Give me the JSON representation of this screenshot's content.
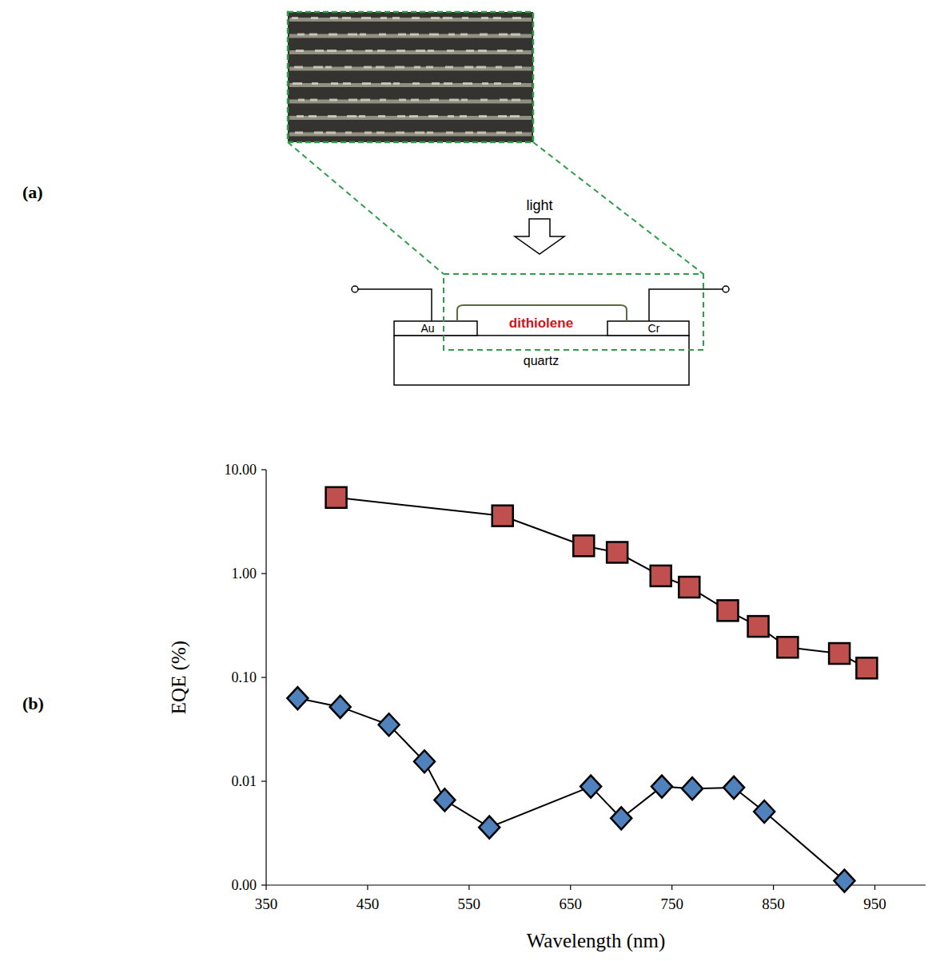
{
  "panels": {
    "a": "(a)",
    "b": "(b)"
  },
  "diagram": {
    "arrow_label": "light",
    "film": "dithiolene",
    "left_electrode": "Au",
    "right_electrode": "Cr",
    "substrate": "quartz"
  },
  "chart_data": {
    "type": "line",
    "log": "y",
    "grid": false,
    "x_label": "Wavelength (nm)",
    "y_label": "EQE (%)",
    "xlim": [
      350,
      1000
    ],
    "xticks": [
      350,
      450,
      550,
      650,
      750,
      850,
      950
    ],
    "ylim": [
      0.001,
      10
    ],
    "yticks": [
      {
        "value": 0.001,
        "label": "0.00"
      },
      {
        "value": 0.01,
        "label": "0.01"
      },
      {
        "value": 0.1,
        "label": "0.10"
      },
      {
        "value": 1,
        "label": "1.00"
      },
      {
        "value": 10,
        "label": "10.00"
      }
    ],
    "series": [
      {
        "color": "#c0504d",
        "marker": "square",
        "line_style": "solid",
        "x": [
          419,
          583,
          663,
          696,
          739,
          767,
          805,
          835,
          864,
          915,
          942
        ],
        "values": [
          5.4,
          3.6,
          1.85,
          1.6,
          0.95,
          0.74,
          0.44,
          0.31,
          0.195,
          0.17,
          0.123
        ]
      },
      {
        "color": "#4f81bd",
        "marker": "diamond",
        "line_style": "solid",
        "x": [
          381,
          423,
          471,
          506,
          526,
          570,
          670,
          700,
          740,
          770,
          811,
          841,
          920
        ],
        "values": [
          0.063,
          0.052,
          0.035,
          0.0155,
          0.0066,
          0.0036,
          0.0089,
          0.0044,
          0.0089,
          0.0085,
          0.0087,
          0.0051,
          0.0011
        ]
      }
    ]
  }
}
